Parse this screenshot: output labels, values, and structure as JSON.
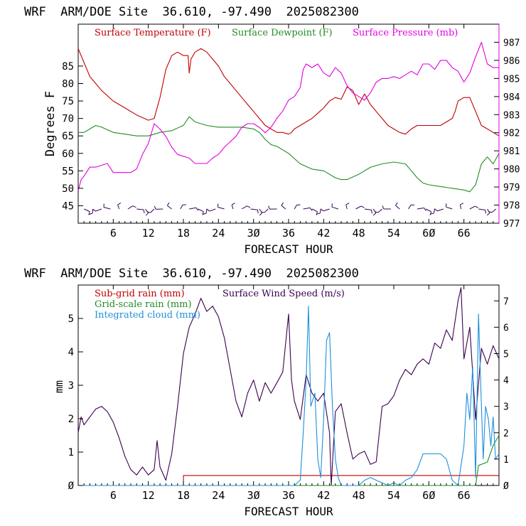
{
  "top_panel": {
    "header": "WRF  ARM/DOE Site  36.610, -97.490  2025082300",
    "xlabel": "FORECAST HOUR",
    "ylabel": "Degrees F",
    "legend": [
      {
        "label": "Surface Temperature (F)",
        "color": "#c00000"
      },
      {
        "label": "Surface Dewpoint (F)",
        "color": "#228b22"
      },
      {
        "label": "Surface Pressure (mb)",
        "color": "#e000e0"
      }
    ]
  },
  "bottom_panel": {
    "header": "WRF  ARM/DOE Site  36.610, -97.490  2025082300",
    "xlabel": "FORECAST HOUR",
    "ylabel": "mm",
    "legend": [
      {
        "label": "Sub-grid rain (mm)",
        "color": "#c00000"
      },
      {
        "label": "Surface Wind Speed (m/s)",
        "color": "#3a0050"
      },
      {
        "label": "Grid-scale rain (mm)",
        "color": "#228b22"
      },
      {
        "label": "Integrated cloud (mm)",
        "color": "#1e8fdc"
      }
    ]
  },
  "chart_data": [
    {
      "type": "line",
      "xlim": [
        0,
        72
      ],
      "ylim": [
        40,
        97
      ],
      "y2lim": [
        977,
        988
      ],
      "xticks": [
        6,
        12,
        18,
        24,
        30,
        36,
        42,
        48,
        54,
        60,
        66
      ],
      "xtick_labels": [
        "6",
        "12",
        "18",
        "24",
        "3Ø",
        "36",
        "42",
        "48",
        "54",
        "6Ø",
        "66"
      ],
      "yticks": [
        45,
        50,
        55,
        60,
        65,
        70,
        75,
        80,
        85
      ],
      "y2ticks": [
        977,
        978,
        979,
        980,
        981,
        982,
        983,
        984,
        985,
        986,
        987
      ],
      "series": [
        {
          "name": "Surface Temperature (F)",
          "color": "#c00000",
          "axis": "left",
          "x": [
            0,
            1,
            2,
            3,
            4,
            6,
            8,
            10,
            12,
            13,
            14,
            15,
            16,
            17,
            18,
            18.8,
            19,
            19.3,
            20,
            21,
            22,
            23,
            24,
            25,
            26,
            27,
            28,
            29,
            30,
            31,
            32,
            33,
            34,
            35,
            36,
            36.5,
            37,
            38,
            39,
            40,
            41,
            42,
            43,
            44,
            45,
            46,
            47,
            48,
            49,
            50,
            51,
            52,
            53,
            54,
            55,
            56,
            57,
            58,
            59,
            60,
            61,
            62,
            63,
            64,
            64.5,
            65,
            66,
            67,
            68,
            69,
            70,
            71,
            72
          ],
          "values": [
            90,
            86,
            82,
            80,
            78,
            75,
            73,
            71,
            69.5,
            70,
            76,
            84,
            88,
            89,
            88,
            88,
            83,
            87,
            89,
            90,
            89,
            87,
            85,
            82,
            80,
            78,
            76,
            74,
            72,
            70,
            68,
            67,
            66,
            66,
            65.5,
            66,
            67,
            68,
            69,
            70,
            71.5,
            73,
            75,
            76,
            75.5,
            79,
            78,
            74,
            77,
            74,
            72,
            70,
            68,
            67,
            66,
            65.5,
            67,
            68,
            68,
            68,
            68,
            68,
            69,
            70,
            72,
            75,
            76,
            76,
            72,
            68,
            67,
            66,
            65
          ]
        },
        {
          "name": "Surface Dewpoint (F)",
          "color": "#228b22",
          "axis": "left",
          "x": [
            0,
            1,
            2,
            3,
            4,
            6,
            8,
            10,
            12,
            14,
            16,
            18,
            19,
            20,
            22,
            24,
            26,
            28,
            30,
            31,
            32,
            33,
            34,
            36,
            38,
            40,
            42,
            43,
            44,
            45,
            46,
            48,
            50,
            52,
            54,
            56,
            57,
            58,
            59,
            60,
            62,
            64,
            66,
            67,
            68,
            69,
            70,
            71,
            72
          ],
          "values": [
            66,
            66,
            67,
            68,
            67.5,
            66,
            65.5,
            65,
            65,
            66,
            66.5,
            68,
            70.5,
            69,
            68,
            67.5,
            67.5,
            67.5,
            67,
            66,
            64,
            62.5,
            62,
            60,
            57,
            55.5,
            55,
            54,
            53,
            52.5,
            52.5,
            54,
            56,
            57,
            57.5,
            57,
            55,
            53,
            51.5,
            51,
            50.5,
            50,
            49.5,
            49,
            51,
            57,
            59,
            57,
            60
          ]
        },
        {
          "name": "Surface Pressure (mb)",
          "color": "#e000e0",
          "axis": "right",
          "x": [
            0,
            0.5,
            1,
            2,
            3,
            4,
            5,
            6,
            7,
            8,
            9,
            10,
            11,
            12,
            13,
            14,
            15,
            16,
            17,
            18,
            19,
            20,
            21,
            22,
            23,
            24,
            25,
            26,
            27,
            28,
            29,
            30,
            31,
            32,
            33,
            34,
            35,
            36,
            37,
            38,
            38.5,
            39,
            40,
            41,
            42,
            43,
            44,
            45,
            46,
            47,
            48,
            49,
            50,
            51,
            52,
            53,
            54,
            55,
            56,
            57,
            58,
            59,
            60,
            61,
            62,
            63,
            64,
            65,
            66,
            67,
            68,
            69,
            70,
            71,
            72
          ],
          "values": [
            978.8,
            979.4,
            979.6,
            980.1,
            980.1,
            980.2,
            980.3,
            979.8,
            979.8,
            979.8,
            979.8,
            980.0,
            980.8,
            981.4,
            982.5,
            982.2,
            981.8,
            981.2,
            980.8,
            980.7,
            980.6,
            980.3,
            980.3,
            980.3,
            980.6,
            980.8,
            981.2,
            981.5,
            981.8,
            982.3,
            982.5,
            982.5,
            982.3,
            982.0,
            982.3,
            982.8,
            983.2,
            983.8,
            984.0,
            984.5,
            985.5,
            985.8,
            985.6,
            985.8,
            985.3,
            985.1,
            985.6,
            985.3,
            984.6,
            984.2,
            984.0,
            983.8,
            984.2,
            984.8,
            985.0,
            985.0,
            985.1,
            985.0,
            985.2,
            985.4,
            985.2,
            985.8,
            985.8,
            985.5,
            986.0,
            986.0,
            985.6,
            985.4,
            984.8,
            985.3,
            986.2,
            987.0,
            985.8,
            985.6,
            985.6
          ]
        }
      ]
    },
    {
      "type": "line",
      "xlim": [
        0,
        72
      ],
      "ylim": [
        0,
        6
      ],
      "y2lim": [
        0,
        7.6
      ],
      "xticks": [
        6,
        12,
        18,
        24,
        30,
        36,
        42,
        48,
        54,
        60,
        66
      ],
      "xtick_labels": [
        "6",
        "12",
        "18",
        "24",
        "3Ø",
        "36",
        "42",
        "48",
        "54",
        "6Ø",
        "66"
      ],
      "yticks": [
        0,
        1,
        2,
        3,
        4,
        5
      ],
      "ytick_labels": [
        "Ø",
        "1",
        "2",
        "3",
        "4",
        "5"
      ],
      "y2ticks": [
        0,
        1,
        2,
        3,
        4,
        5,
        6,
        7
      ],
      "y2tick_labels": [
        "Ø",
        "1",
        "2",
        "3",
        "4",
        "5",
        "6",
        "7"
      ],
      "series": [
        {
          "name": "Sub-grid rain (mm)",
          "color": "#c00000",
          "axis": "left",
          "x": [
            0,
            18,
            18.01,
            72
          ],
          "values": [
            0,
            0,
            0.3,
            0.3
          ]
        },
        {
          "name": "Surface Wind Speed (m/s)",
          "color": "#3a0050",
          "axis": "right",
          "x": [
            0,
            0.5,
            1,
            2,
            3,
            4,
            5,
            6,
            7,
            8,
            9,
            10,
            11,
            12,
            13,
            13.5,
            14,
            15,
            16,
            17,
            18,
            19,
            20,
            21,
            22,
            23,
            24,
            25,
            26,
            27,
            28,
            29,
            30,
            31,
            32,
            33,
            34,
            35,
            36,
            36.5,
            37,
            38,
            39,
            40,
            41,
            42,
            43,
            43.3,
            44,
            45,
            46,
            47,
            48,
            49,
            50,
            51,
            52,
            53,
            54,
            55,
            56,
            57,
            58,
            59,
            60,
            61,
            62,
            63,
            64,
            65,
            65.5,
            66,
            67,
            68,
            69,
            70,
            71,
            72
          ],
          "values": [
            2.0,
            2.6,
            2.3,
            2.6,
            2.9,
            3.0,
            2.8,
            2.4,
            1.8,
            1.1,
            0.6,
            0.4,
            0.7,
            0.4,
            0.6,
            1.7,
            0.7,
            0.2,
            1.2,
            3.0,
            5.0,
            6.0,
            6.5,
            7.1,
            6.6,
            6.8,
            6.4,
            5.6,
            4.4,
            3.2,
            2.6,
            3.5,
            4.0,
            3.2,
            3.9,
            3.5,
            3.9,
            4.3,
            6.5,
            4.0,
            3.2,
            2.5,
            4.2,
            3.5,
            3.2,
            3.5,
            2.0,
            0,
            2.8,
            3.1,
            2.0,
            1.0,
            1.2,
            1.3,
            0.8,
            0.9,
            3.0,
            3.1,
            3.4,
            4.0,
            4.4,
            4.2,
            4.6,
            4.8,
            4.6,
            5.4,
            5.2,
            5.9,
            5.5,
            7.0,
            7.5,
            4.8,
            6.0,
            2.5,
            5.2,
            4.6,
            5.3,
            4.8
          ]
        },
        {
          "name": "Grid-scale rain (mm)",
          "color": "#228b22",
          "axis": "left",
          "x": [
            0,
            68,
            68.5,
            70,
            71,
            72
          ],
          "values": [
            0,
            0,
            0.6,
            0.7,
            1.2,
            1.5
          ]
        },
        {
          "name": "Integrated cloud (mm)",
          "color": "#1e8fdc",
          "axis": "right",
          "x": [
            0,
            36,
            37,
            38,
            38.5,
            39,
            39.4,
            39.8,
            40.5,
            41,
            41.5,
            42,
            42.5,
            43,
            43.5,
            44,
            44.5,
            45,
            46,
            47,
            48,
            49,
            50,
            51,
            52,
            53,
            54,
            55,
            56,
            57,
            58,
            59,
            60,
            61,
            62,
            63,
            64,
            65,
            66,
            66.5,
            67,
            67.5,
            68,
            68.5,
            69,
            69.3,
            69.7,
            70.2,
            70.6,
            71,
            71.4,
            72
          ],
          "values": [
            0,
            0,
            0,
            0.2,
            2.0,
            4.0,
            6.8,
            3.0,
            3.5,
            1.0,
            0.3,
            2.5,
            5.5,
            5.8,
            3.0,
            1.0,
            0.3,
            0,
            0,
            0,
            0,
            0.2,
            0.3,
            0.2,
            0.1,
            0,
            0.1,
            0,
            0.2,
            0.3,
            0.6,
            1.2,
            1.2,
            1.2,
            1.2,
            1.0,
            0.2,
            0,
            1.5,
            3.5,
            2.5,
            4.5,
            0.3,
            6.5,
            3.0,
            1.0,
            3.0,
            2.5,
            1.5,
            2.6,
            1.0,
            1.2
          ]
        }
      ]
    }
  ]
}
